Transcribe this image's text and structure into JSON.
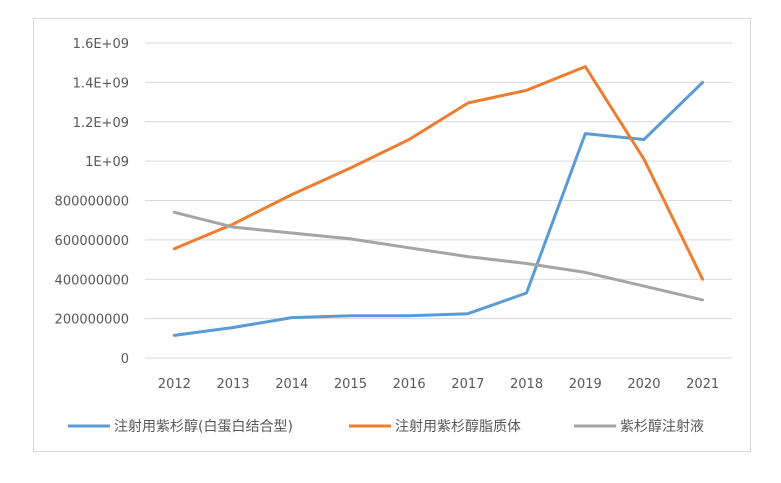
{
  "chart_data": {
    "type": "line",
    "title": "",
    "xlabel": "",
    "ylabel": "",
    "categories": [
      "2012",
      "2013",
      "2014",
      "2015",
      "2016",
      "2017",
      "2018",
      "2019",
      "2020",
      "2021"
    ],
    "ylim": [
      0,
      1600000000
    ],
    "y_ticks": [
      0,
      200000000,
      400000000,
      600000000,
      800000000,
      1000000000,
      1200000000,
      1400000000,
      1600000000
    ],
    "y_tick_labels": [
      "0",
      "200000000",
      "400000000",
      "600000000",
      "800000000",
      "1E+09",
      "1.2E+09",
      "1.4E+09",
      "1.6E+09"
    ],
    "grid": true,
    "legend_position": "bottom",
    "series": [
      {
        "name": "注射用紫杉醇(白蛋白结合型)",
        "color": "#5b9bd5",
        "values": [
          115000000,
          155000000,
          205000000,
          215000000,
          215000000,
          225000000,
          330000000,
          1140000000,
          1110000000,
          1400000000
        ]
      },
      {
        "name": "注射用紫杉醇脂质体",
        "color": "#ed7d31",
        "values": [
          555000000,
          680000000,
          830000000,
          965000000,
          1110000000,
          1295000000,
          1360000000,
          1480000000,
          1010000000,
          400000000
        ]
      },
      {
        "name": "紫杉醇注射液",
        "color": "#a5a5a5",
        "values": [
          740000000,
          665000000,
          635000000,
          605000000,
          560000000,
          515000000,
          480000000,
          435000000,
          365000000,
          295000000
        ]
      }
    ]
  }
}
